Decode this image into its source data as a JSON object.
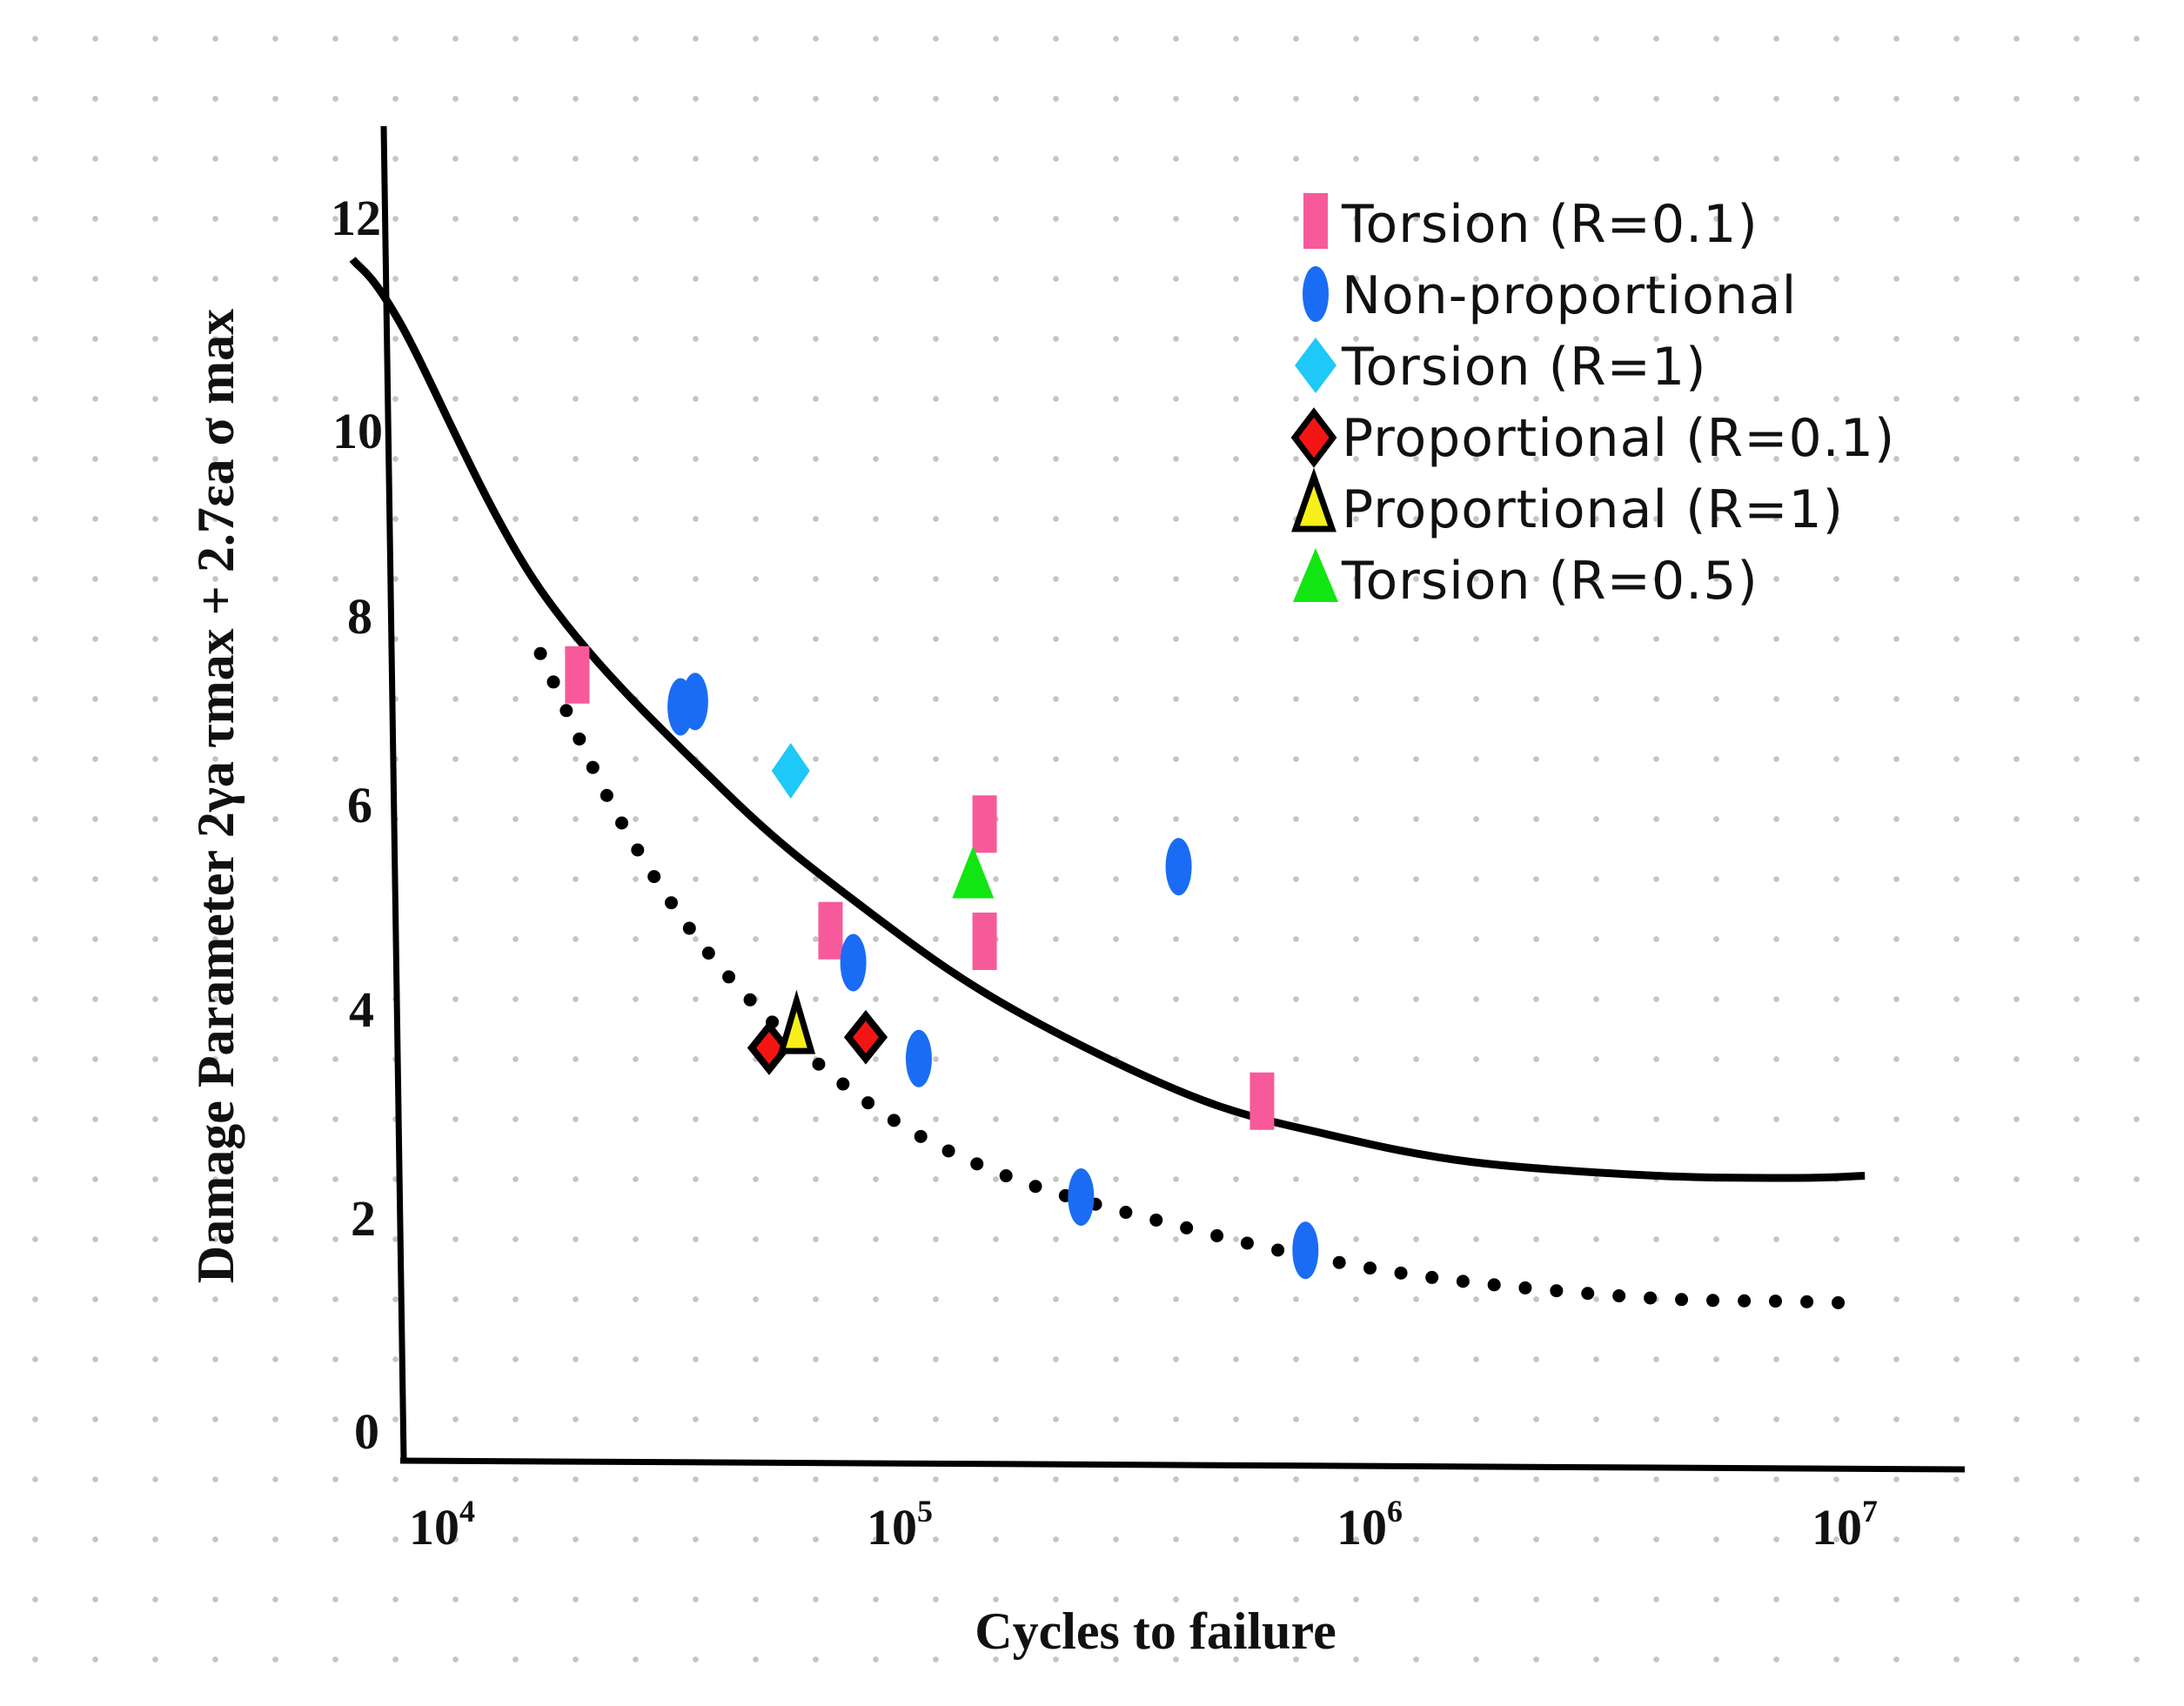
{
  "chart_data": {
    "type": "scatter",
    "xscale": "log",
    "xlabel": "Cycles to failure",
    "ylabel": "Damage Parameter 2γa τmax + 2.7εa σ max",
    "xlim": [
      7500,
      14000000
    ],
    "ylim": [
      0,
      13
    ],
    "y_ticks": [
      "0",
      "2",
      "4",
      "6",
      "8",
      "10",
      "12"
    ],
    "x_ticks": [
      {
        "base": "10",
        "exp": "4",
        "value": 10000
      },
      {
        "base": "10",
        "exp": "5",
        "value": 100000
      },
      {
        "base": "10",
        "exp": "6",
        "value": 1000000
      },
      {
        "base": "10",
        "exp": "7",
        "value": 10000000
      }
    ],
    "legend_position": "top-right",
    "series": [
      {
        "name": "Torsion (R=0.1)",
        "marker": "rect",
        "color": "#f75a9b",
        "points": [
          [
            24000,
            7.3
          ],
          [
            84000,
            4.9
          ],
          [
            180000,
            5.9
          ],
          [
            180000,
            4.8
          ],
          [
            710000,
            3.3
          ]
        ]
      },
      {
        "name": "Non-proportional",
        "marker": "ellipse",
        "color": "#1a6cf5",
        "points": [
          [
            40000,
            7.0
          ],
          [
            43000,
            7.05
          ],
          [
            94000,
            4.6
          ],
          [
            130000,
            3.7
          ],
          [
            290000,
            2.4
          ],
          [
            470000,
            5.5
          ],
          [
            880000,
            1.9
          ]
        ]
      },
      {
        "name": "Torsion (R=1)",
        "marker": "diamond",
        "color": "#1ec8f7",
        "points": [
          [
            69000,
            6.4
          ]
        ]
      },
      {
        "name": "Proportional (R=0.1)",
        "marker": "diamond-outline",
        "color": "#f51414",
        "points": [
          [
            62000,
            3.8
          ],
          [
            100000,
            3.9
          ]
        ]
      },
      {
        "name": "Proportional (R=1)",
        "marker": "triangle-outline",
        "color": "#f7ef1a",
        "points": [
          [
            71000,
            3.95
          ]
        ]
      },
      {
        "name": "Torsion (R=0.5)",
        "marker": "triangle",
        "color": "#12e612",
        "points": [
          [
            170000,
            5.4
          ]
        ]
      }
    ],
    "curves": [
      {
        "name": "solid-fit",
        "style": "solid",
        "color": "#000000",
        "x": [
          7900,
          10000,
          20000,
          50000,
          100000,
          200000,
          500000,
          1000000,
          2000000,
          5000000,
          10000000,
          14000000
        ],
        "y": [
          11.2,
          10.6,
          8.1,
          6.2,
          5.1,
          4.2,
          3.35,
          2.98,
          2.73,
          2.6,
          2.58,
          2.6
        ]
      },
      {
        "name": "dotted-fit",
        "style": "dotted",
        "color": "#000000",
        "x": [
          20000,
          30000,
          50000,
          100000,
          200000,
          500000,
          1000000,
          2000000,
          5000000,
          10000000,
          14000000
        ],
        "y": [
          7.5,
          5.9,
          4.5,
          3.3,
          2.6,
          2.1,
          1.8,
          1.6,
          1.45,
          1.42,
          1.4
        ]
      }
    ]
  }
}
